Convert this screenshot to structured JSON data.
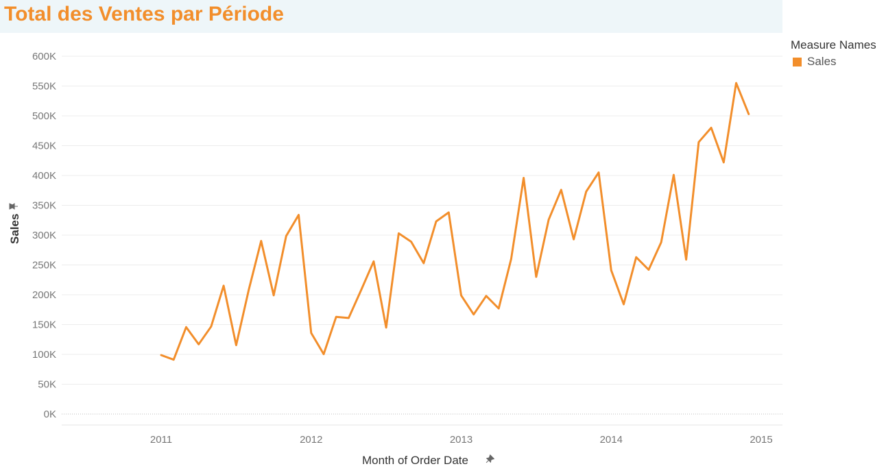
{
  "title": "Total des Ventes par Période",
  "legend": {
    "title": "Measure Names",
    "items": [
      {
        "label": "Sales",
        "color": "#f28e2b"
      }
    ]
  },
  "colors": {
    "accent": "#f28e2b",
    "title_bg": "#eef6f9",
    "gridline": "#ececec"
  },
  "icons": {
    "axis_pin": "pin-icon"
  },
  "chart_data": {
    "type": "line",
    "xlabel": "Month of Order Date",
    "ylabel": "Sales",
    "x_ticks": [
      "2011",
      "2012",
      "2013",
      "2014",
      "2015"
    ],
    "y_ticks": [
      "0K",
      "50K",
      "100K",
      "150K",
      "200K",
      "250K",
      "300K",
      "350K",
      "400K",
      "450K",
      "500K",
      "550K",
      "600K"
    ],
    "ylim": [
      0,
      600000
    ],
    "grid": true,
    "legend_position": "right",
    "series": [
      {
        "name": "Sales",
        "color": "#f28e2b",
        "x": [
          "2011-01",
          "2011-02",
          "2011-03",
          "2011-04",
          "2011-05",
          "2011-06",
          "2011-07",
          "2011-08",
          "2011-09",
          "2011-10",
          "2011-11",
          "2011-12",
          "2012-01",
          "2012-02",
          "2012-03",
          "2012-04",
          "2012-05",
          "2012-06",
          "2012-07",
          "2012-08",
          "2012-09",
          "2012-10",
          "2012-11",
          "2012-12",
          "2013-01",
          "2013-02",
          "2013-03",
          "2013-04",
          "2013-05",
          "2013-06",
          "2013-07",
          "2013-08",
          "2013-09",
          "2013-10",
          "2013-11",
          "2013-12",
          "2014-01",
          "2014-02",
          "2014-03",
          "2014-04",
          "2014-05",
          "2014-06",
          "2014-07",
          "2014-08",
          "2014-09",
          "2014-10",
          "2014-11",
          "2014-12"
        ],
        "values": [
          98900,
          91200,
          145700,
          116900,
          146800,
          215200,
          115500,
          207600,
          290200,
          199100,
          298500,
          333900,
          136000,
          100500,
          163000,
          161000,
          208000,
          256000,
          145000,
          303000,
          289000,
          253000,
          323000,
          338000,
          199000,
          167000,
          198000,
          177000,
          260000,
          396000,
          230000,
          326000,
          376000,
          293000,
          373000,
          405000,
          241000,
          184000,
          263000,
          242000,
          288000,
          401000,
          259000,
          456000,
          480000,
          422000,
          555000,
          503000
        ]
      }
    ]
  }
}
